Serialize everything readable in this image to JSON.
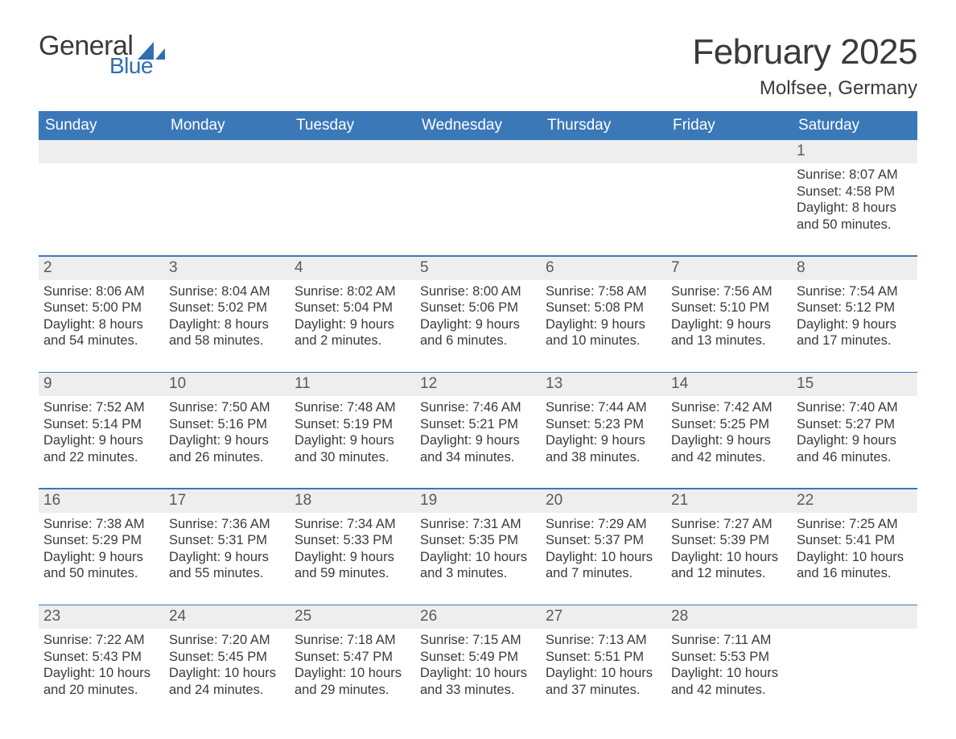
{
  "colors": {
    "header_bg": "#3b78b8",
    "header_text": "#ffffff",
    "daynum_bg": "#eeeeee",
    "divider": "#3b78b8",
    "text": "#3a3a3a",
    "logo_blue": "#2f6fb0"
  },
  "logo": {
    "text_top": "General",
    "text_bottom": "Blue",
    "flag_color": "#2f6fb0"
  },
  "title": {
    "month_year": "February 2025",
    "location": "Molfsee, Germany"
  },
  "day_headers": [
    "Sunday",
    "Monday",
    "Tuesday",
    "Wednesday",
    "Thursday",
    "Friday",
    "Saturday"
  ],
  "weeks": [
    {
      "nums": [
        "",
        "",
        "",
        "",
        "",
        "",
        "1"
      ],
      "cells": [
        "",
        "",
        "",
        "",
        "",
        "",
        "Sunrise: 8:07 AM\nSunset: 4:58 PM\nDaylight: 8 hours and 50 minutes."
      ]
    },
    {
      "nums": [
        "2",
        "3",
        "4",
        "5",
        "6",
        "7",
        "8"
      ],
      "cells": [
        "Sunrise: 8:06 AM\nSunset: 5:00 PM\nDaylight: 8 hours and 54 minutes.",
        "Sunrise: 8:04 AM\nSunset: 5:02 PM\nDaylight: 8 hours and 58 minutes.",
        "Sunrise: 8:02 AM\nSunset: 5:04 PM\nDaylight: 9 hours and 2 minutes.",
        "Sunrise: 8:00 AM\nSunset: 5:06 PM\nDaylight: 9 hours and 6 minutes.",
        "Sunrise: 7:58 AM\nSunset: 5:08 PM\nDaylight: 9 hours and 10 minutes.",
        "Sunrise: 7:56 AM\nSunset: 5:10 PM\nDaylight: 9 hours and 13 minutes.",
        "Sunrise: 7:54 AM\nSunset: 5:12 PM\nDaylight: 9 hours and 17 minutes."
      ]
    },
    {
      "nums": [
        "9",
        "10",
        "11",
        "12",
        "13",
        "14",
        "15"
      ],
      "cells": [
        "Sunrise: 7:52 AM\nSunset: 5:14 PM\nDaylight: 9 hours and 22 minutes.",
        "Sunrise: 7:50 AM\nSunset: 5:16 PM\nDaylight: 9 hours and 26 minutes.",
        "Sunrise: 7:48 AM\nSunset: 5:19 PM\nDaylight: 9 hours and 30 minutes.",
        "Sunrise: 7:46 AM\nSunset: 5:21 PM\nDaylight: 9 hours and 34 minutes.",
        "Sunrise: 7:44 AM\nSunset: 5:23 PM\nDaylight: 9 hours and 38 minutes.",
        "Sunrise: 7:42 AM\nSunset: 5:25 PM\nDaylight: 9 hours and 42 minutes.",
        "Sunrise: 7:40 AM\nSunset: 5:27 PM\nDaylight: 9 hours and 46 minutes."
      ]
    },
    {
      "nums": [
        "16",
        "17",
        "18",
        "19",
        "20",
        "21",
        "22"
      ],
      "cells": [
        "Sunrise: 7:38 AM\nSunset: 5:29 PM\nDaylight: 9 hours and 50 minutes.",
        "Sunrise: 7:36 AM\nSunset: 5:31 PM\nDaylight: 9 hours and 55 minutes.",
        "Sunrise: 7:34 AM\nSunset: 5:33 PM\nDaylight: 9 hours and 59 minutes.",
        "Sunrise: 7:31 AM\nSunset: 5:35 PM\nDaylight: 10 hours and 3 minutes.",
        "Sunrise: 7:29 AM\nSunset: 5:37 PM\nDaylight: 10 hours and 7 minutes.",
        "Sunrise: 7:27 AM\nSunset: 5:39 PM\nDaylight: 10 hours and 12 minutes.",
        "Sunrise: 7:25 AM\nSunset: 5:41 PM\nDaylight: 10 hours and 16 minutes."
      ]
    },
    {
      "nums": [
        "23",
        "24",
        "25",
        "26",
        "27",
        "28",
        ""
      ],
      "cells": [
        "Sunrise: 7:22 AM\nSunset: 5:43 PM\nDaylight: 10 hours and 20 minutes.",
        "Sunrise: 7:20 AM\nSunset: 5:45 PM\nDaylight: 10 hours and 24 minutes.",
        "Sunrise: 7:18 AM\nSunset: 5:47 PM\nDaylight: 10 hours and 29 minutes.",
        "Sunrise: 7:15 AM\nSunset: 5:49 PM\nDaylight: 10 hours and 33 minutes.",
        "Sunrise: 7:13 AM\nSunset: 5:51 PM\nDaylight: 10 hours and 37 minutes.",
        "Sunrise: 7:11 AM\nSunset: 5:53 PM\nDaylight: 10 hours and 42 minutes.",
        ""
      ]
    }
  ]
}
